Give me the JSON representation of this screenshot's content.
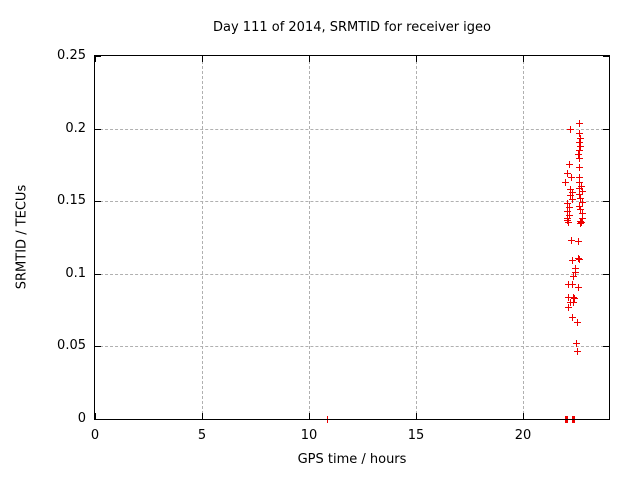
{
  "chart_data": {
    "type": "scatter",
    "title": "Day 111 of 2014, SRMTID for receiver igeo",
    "xlabel": "GPS time / hours",
    "ylabel": "SRMTID / TECUs",
    "xlim": [
      0,
      24
    ],
    "ylim": [
      0,
      0.25
    ],
    "xticks": [
      0,
      5,
      10,
      15,
      20
    ],
    "xtick_labels": [
      "0",
      "5",
      "10",
      "15",
      "20"
    ],
    "yticks": [
      0,
      0.05,
      0.1,
      0.15,
      0.2,
      0.25
    ],
    "ytick_labels": [
      "0",
      "0.05",
      "0.1",
      "0.15",
      "0.2",
      "0.25"
    ],
    "grid": true,
    "legend_position": "none",
    "marker": "plus",
    "marker_color": "#ee0000",
    "grid_color": "#b0b0b0",
    "axis_color": "#000000",
    "series_name": "SRMTID",
    "points": [
      [
        22.6,
        0.204
      ],
      [
        22.18,
        0.1995
      ],
      [
        22.6,
        0.1967
      ],
      [
        22.65,
        0.1933
      ],
      [
        22.58,
        0.1905
      ],
      [
        22.64,
        0.188
      ],
      [
        22.6,
        0.1853
      ],
      [
        22.54,
        0.1823
      ],
      [
        22.6,
        0.1795
      ],
      [
        22.11,
        0.1754
      ],
      [
        22.6,
        0.1737
      ],
      [
        22.03,
        0.1692
      ],
      [
        22.23,
        0.1669
      ],
      [
        22.61,
        0.1668
      ],
      [
        21.95,
        0.1634
      ],
      [
        22.6,
        0.1634
      ],
      [
        22.7,
        0.1607
      ],
      [
        22.59,
        0.1593
      ],
      [
        22.18,
        0.1584
      ],
      [
        22.72,
        0.1568
      ],
      [
        22.29,
        0.1565
      ],
      [
        22.6,
        0.1547
      ],
      [
        22.17,
        0.1542
      ],
      [
        22.65,
        0.152
      ],
      [
        22.29,
        0.1515
      ],
      [
        22.72,
        0.1492
      ],
      [
        22.03,
        0.1485
      ],
      [
        22.59,
        0.1469
      ],
      [
        22.15,
        0.1462
      ],
      [
        22.65,
        0.1446
      ],
      [
        22.03,
        0.1432
      ],
      [
        22.72,
        0.1416
      ],
      [
        22.11,
        0.1405
      ],
      [
        22.03,
        0.1382
      ],
      [
        22.72,
        0.1382
      ],
      [
        22.02,
        0.137
      ],
      [
        22.64,
        0.1366
      ],
      [
        22.1,
        0.1356
      ],
      [
        22.68,
        0.1354
      ],
      [
        22.64,
        0.1348
      ],
      [
        22.22,
        0.1231
      ],
      [
        22.54,
        0.1224
      ],
      [
        22.54,
        0.1111
      ],
      [
        22.58,
        0.1105
      ],
      [
        22.26,
        0.1095
      ],
      [
        22.41,
        0.1042
      ],
      [
        22.41,
        0.1015
      ],
      [
        22.33,
        0.0987
      ],
      [
        22.1,
        0.0928
      ],
      [
        22.29,
        0.0928
      ],
      [
        22.54,
        0.0911
      ],
      [
        22.1,
        0.0842
      ],
      [
        22.31,
        0.0838
      ],
      [
        22.35,
        0.0832
      ],
      [
        22.17,
        0.0808
      ],
      [
        22.33,
        0.0803
      ],
      [
        22.1,
        0.0773
      ],
      [
        22.26,
        0.0705
      ],
      [
        22.49,
        0.067
      ],
      [
        22.46,
        0.0525
      ],
      [
        22.52,
        0.047
      ],
      [
        10.85,
        0.0
      ],
      [
        21.93,
        0.0
      ],
      [
        21.96,
        0.0
      ],
      [
        21.99,
        0.0
      ],
      [
        22.02,
        0.0
      ],
      [
        22.28,
        0.0
      ],
      [
        22.31,
        0.0
      ],
      [
        22.34,
        0.0
      ],
      [
        22.37,
        0.0
      ]
    ]
  }
}
